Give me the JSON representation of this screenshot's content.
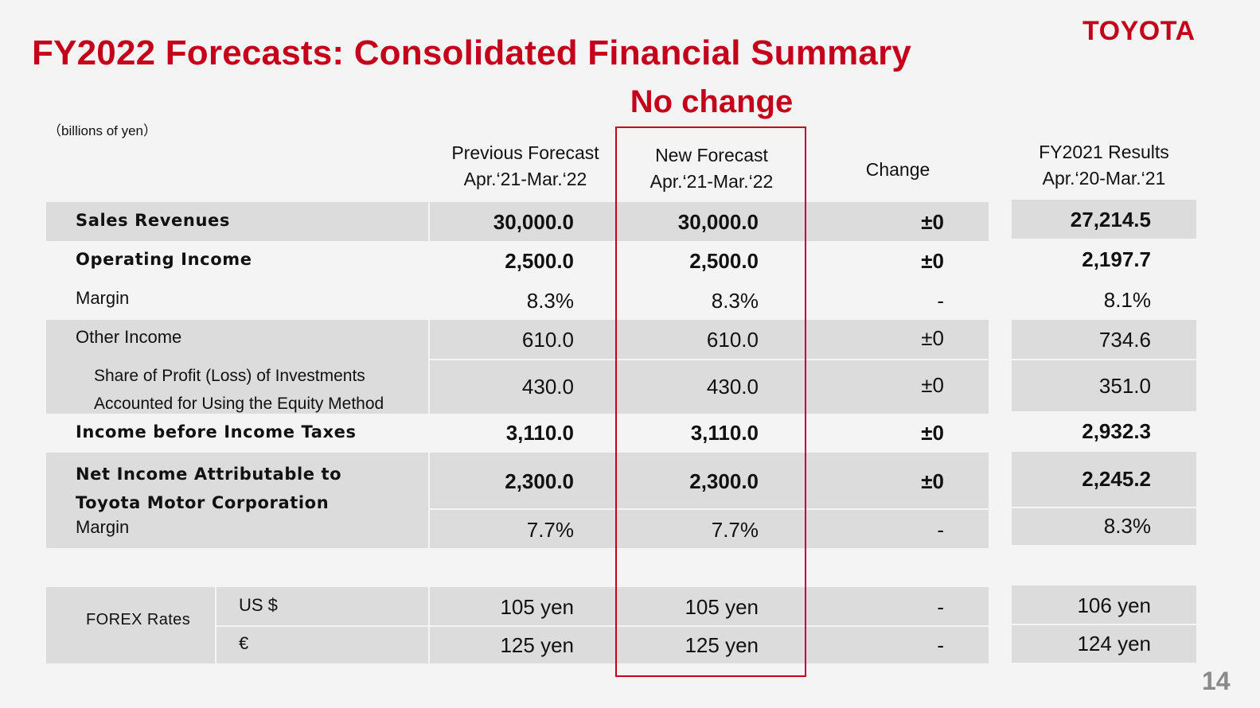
{
  "slide": {
    "title": "FY2022 Forecasts: Consolidated Financial Summary",
    "logo": "TOYOTA",
    "callout": "No change",
    "units": "（billions of yen）",
    "page_number": "14",
    "accent_color": "#c4001a"
  },
  "columns": {
    "prev": {
      "line1": "Previous Forecast",
      "line2": "Apr.‘21-Mar.‘22"
    },
    "new": {
      "line1": "New Forecast",
      "line2": "Apr.‘21-Mar.‘22"
    },
    "change": {
      "line1": "Change"
    },
    "fy2021": {
      "line1": "FY2021 Results",
      "line2": "Apr.‘20-Mar.‘21"
    }
  },
  "rows": [
    {
      "label": "Sales Revenues",
      "prev": "30,000.0",
      "new": "30,000.0",
      "change": "±0",
      "fy2021": "27,214.5"
    },
    {
      "label": "Operating Income",
      "prev": "2,500.0",
      "new": "2,500.0",
      "change": "±0",
      "fy2021": "2,197.7"
    },
    {
      "label": "Margin",
      "prev": "8.3%",
      "new": "8.3%",
      "change": "-",
      "fy2021": "8.1%"
    },
    {
      "label": "Other Income",
      "prev": "610.0",
      "new": "610.0",
      "change": "±0",
      "fy2021": "734.6"
    },
    {
      "label_line1": "Share of Profit (Loss) of Investments",
      "label_line2": "Accounted for Using the Equity Method",
      "prev": "430.0",
      "new": "430.0",
      "change": "±0",
      "fy2021": "351.0"
    },
    {
      "label": "Income before Income Taxes",
      "prev": "3,110.0",
      "new": "3,110.0",
      "change": "±0",
      "fy2021": "2,932.3"
    },
    {
      "label_line1": "Net Income Attributable to",
      "label_line2": "Toyota Motor Corporation",
      "prev": "2,300.0",
      "new": "2,300.0",
      "change": "±0",
      "fy2021": "2,245.2"
    },
    {
      "label": "Margin",
      "prev": "7.7%",
      "new": "7.7%",
      "change": "-",
      "fy2021": "8.3%"
    }
  ],
  "forex": {
    "label": "FOREX Rates",
    "rows": [
      {
        "currency": "US $",
        "prev": "105 yen",
        "new": "105 yen",
        "change": "-",
        "fy2021": "106 yen"
      },
      {
        "currency": "€",
        "prev": "125 yen",
        "new": "125 yen",
        "change": "-",
        "fy2021": "124 yen"
      }
    ]
  }
}
